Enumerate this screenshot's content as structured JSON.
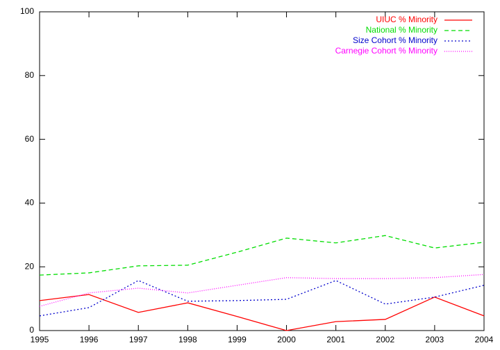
{
  "chart_data": {
    "type": "line",
    "x": [
      1995,
      1996,
      1997,
      1998,
      1999,
      2000,
      2001,
      2002,
      2003,
      2004
    ],
    "series": [
      {
        "name": "UIUC % Minority",
        "color": "#ff0000",
        "dash": "none",
        "values": [
          9.4,
          11.3,
          5.7,
          8.7,
          4.4,
          0,
          2.8,
          3.5,
          10.5,
          4.6
        ]
      },
      {
        "name": "National % Minority",
        "color": "#00dd00",
        "dash": "6,4",
        "values": [
          17.4,
          18.1,
          20.3,
          20.5,
          24.6,
          29.0,
          27.5,
          29.8,
          25.9,
          27.7
        ]
      },
      {
        "name": "Size Cohort % Minority",
        "color": "#0000cc",
        "dash": "2,3",
        "values": [
          4.6,
          7.2,
          15.7,
          9.2,
          9.4,
          9.8,
          15.7,
          8.3,
          10.5,
          14.2
        ]
      },
      {
        "name": "Carnegie Cohort % Minority",
        "color": "#ff00ff",
        "dash": "1,2",
        "values": [
          7.6,
          11.8,
          13.3,
          11.8,
          14.2,
          16.6,
          16.3,
          16.3,
          16.6,
          17.6
        ]
      }
    ],
    "xlim": [
      1995,
      2004
    ],
    "xticks": [
      1995,
      1996,
      1997,
      1998,
      1999,
      2000,
      2001,
      2002,
      2003,
      2004
    ],
    "ylim": [
      0,
      100
    ],
    "yticks": [
      0,
      20,
      40,
      60,
      80,
      100
    ],
    "grid": false,
    "legend": "top-right"
  }
}
